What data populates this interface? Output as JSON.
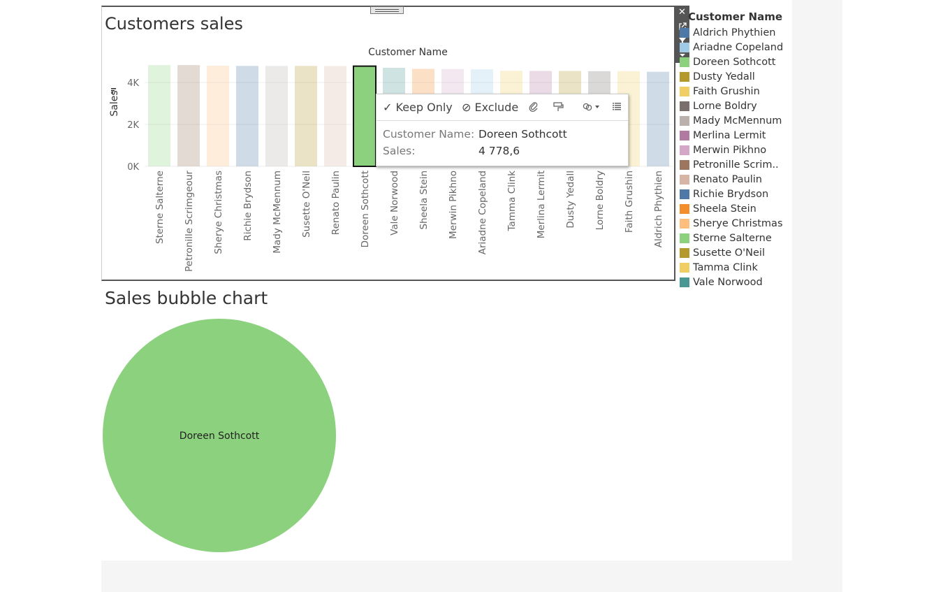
{
  "dashboard": {
    "bar_sheet": {
      "title": "Customers sales",
      "header": "Customer Name",
      "y_axis_title": "Sales"
    },
    "bubble_sheet": {
      "title": "Sales bubble chart"
    }
  },
  "legend": {
    "title": "Customer Name",
    "items": [
      {
        "label": "Aldrich Phythien",
        "color": "#4e79a7"
      },
      {
        "label": "Ariadne Copeland",
        "color": "#a0cbe8"
      },
      {
        "label": "Doreen Sothcott",
        "color": "#8cd17d"
      },
      {
        "label": "Dusty Yedall",
        "color": "#b6992d"
      },
      {
        "label": "Faith Grushin",
        "color": "#f1ce63"
      },
      {
        "label": "Lorne Boldry",
        "color": "#79706e"
      },
      {
        "label": "Mady McMennum",
        "color": "#bab0ac"
      },
      {
        "label": "Merlina Lermit",
        "color": "#b07aa1"
      },
      {
        "label": "Merwin Pikhno",
        "color": "#d4a6c8"
      },
      {
        "label": "Petronille Scrim..",
        "color": "#9d7660"
      },
      {
        "label": "Renato Paulin",
        "color": "#d7b5a6"
      },
      {
        "label": "Richie Brydson",
        "color": "#4e79a7"
      },
      {
        "label": "Sheela Stein",
        "color": "#f28e2b"
      },
      {
        "label": "Sherye Christmas",
        "color": "#ffbe7d"
      },
      {
        "label": "Sterne Salterne",
        "color": "#8cd17d"
      },
      {
        "label": "Susette O'Neil",
        "color": "#b6992d"
      },
      {
        "label": "Tamma Clink",
        "color": "#f1ce63"
      },
      {
        "label": "Vale Norwood",
        "color": "#499894"
      }
    ]
  },
  "toolbar": {
    "icons": [
      "close-icon",
      "popout-icon",
      "filter-icon",
      "more-options-icon"
    ]
  },
  "tooltip": {
    "keep_only": "✓ Keep Only",
    "exclude": "⊘ Exclude",
    "key_customer": "Customer Name:",
    "val_customer": "Doreen Sothcott",
    "key_sales": "Sales:",
    "val_sales": "4 778,6"
  },
  "bubble": {
    "label": "Doreen Sothcott",
    "color": "#8cd17d"
  },
  "chart_data": [
    {
      "type": "bar",
      "title": "Customers sales",
      "xlabel": "Customer Name",
      "ylabel": "Sales",
      "ylim": [
        0,
        5000
      ],
      "yticks": [
        0,
        2000,
        4000
      ],
      "ytick_labels": [
        "0K",
        "2K",
        "4K"
      ],
      "selected": "Doreen Sothcott",
      "categories": [
        "Sterne Salterne",
        "Petronille Scrimgeour",
        "Sherye Christmas",
        "Richie Brydson",
        "Mady McMennum",
        "Susette O'Neil",
        "Renato Paulin",
        "Doreen Sothcott",
        "Vale Norwood",
        "Sheela Stein",
        "Merwin Pikhno",
        "Ariadne Copeland",
        "Tamma Clink",
        "Merlina Lermit",
        "Dusty Yedall",
        "Lorne Boldry",
        "Faith Grushin",
        "Aldrich Phythien"
      ],
      "values": [
        4830,
        4830,
        4800,
        4790,
        4790,
        4790,
        4785,
        4778.6,
        4700,
        4650,
        4640,
        4630,
        4560,
        4550,
        4550,
        4540,
        4540,
        4510
      ],
      "colors": [
        "#8cd17d",
        "#9d7660",
        "#ffbe7d",
        "#4e79a7",
        "#bab0ac",
        "#b6992d",
        "#d7b5a6",
        "#8cd17d",
        "#499894",
        "#f28e2b",
        "#d4a6c8",
        "#a0cbe8",
        "#f1ce63",
        "#b07aa1",
        "#b6992d",
        "#79706e",
        "#f1ce63",
        "#4e79a7"
      ],
      "grid": true
    }
  ]
}
